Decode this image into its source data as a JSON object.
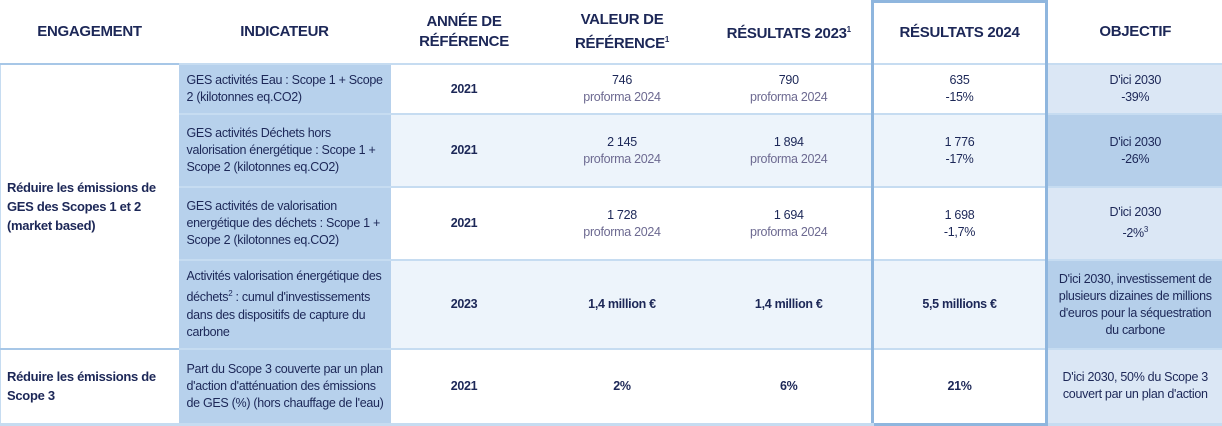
{
  "headers": {
    "engagement": "ENGAGEMENT",
    "indicateur": "INDICATEUR",
    "annee": "ANNÉE DE RÉFÉRENCE",
    "valeur": "VALEUR DE RÉFÉRENCE",
    "valeur_sup": "1",
    "res2023": "RÉSULTATS 2023",
    "res2023_sup": "1",
    "res2024": "RÉSULTATS 2024",
    "objectif": "OBJECTIF"
  },
  "engagements": [
    "Réduire les émissions de GES des Scopes 1 et 2 (market based)",
    "Réduire les émissions de Scope 3"
  ],
  "rows": [
    {
      "indicateur": "GES activités Eau : Scope 1 + Scope 2 (kilotonnes eq.CO2)",
      "annee": "2021",
      "valeur": "746",
      "valeur_note": "proforma 2024",
      "res2023": "790",
      "res2023_note": "proforma 2024",
      "res2024": "635",
      "res2024_note": "-15%",
      "objectif_1": "D'ici 2030",
      "objectif_2": "-39%"
    },
    {
      "indicateur": "GES activités Déchets hors valorisation énergétique : Scope 1 + Scope 2 (kilotonnes eq.CO2)",
      "annee": "2021",
      "valeur": "2 145",
      "valeur_note": "proforma 2024",
      "res2023": "1 894",
      "res2023_note": "proforma 2024",
      "res2024": "1 776",
      "res2024_note": "-17%",
      "objectif_1": "D'ici 2030",
      "objectif_2": "-26%"
    },
    {
      "indicateur": "GES activités de valorisation energétique des déchets : Scope 1 + Scope 2 (kilotonnes eq.CO2)",
      "annee": "2021",
      "valeur": "1 728",
      "valeur_note": "proforma 2024",
      "res2023": "1 694",
      "res2023_note": "proforma 2024",
      "res2024": "1 698",
      "res2024_note": "-1,7%",
      "objectif_1": "D'ici 2030",
      "objectif_2": "-2%",
      "objectif_sup": "3"
    },
    {
      "indicateur_a": "Activités valorisation énergétique des déchets",
      "indicateur_sup": "2",
      "indicateur_b": " : cumul d'investissements dans des dispositifs de capture du carbone",
      "annee": "2023",
      "valeur": "1,4 million €",
      "res2023": "1,4 million €",
      "res2024": "5,5 millions €",
      "objectif": "D'ici 2030, investissement de plusieurs dizaines de millions d'euros pour la séquestration du carbone"
    },
    {
      "indicateur": "Part du Scope 3 couverte par un plan d'action d'atténuation des émissions de GES (%) (hors chauffage de l'eau)",
      "annee": "2021",
      "valeur": "2%",
      "res2023": "6%",
      "res2024": "21%",
      "objectif": "D'ici 2030, 50% du Scope 3 couvert par un plan d'action"
    }
  ]
}
